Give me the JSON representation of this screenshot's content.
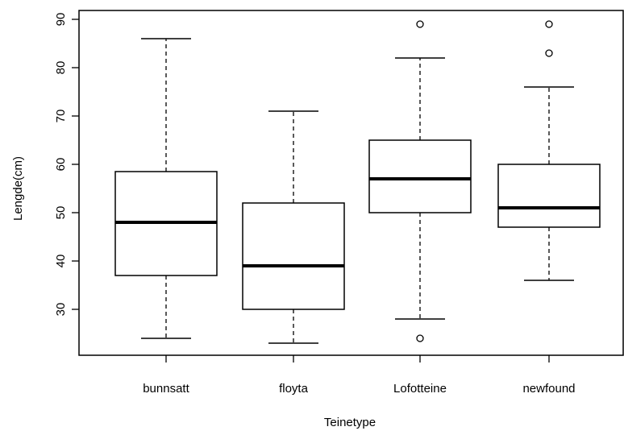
{
  "chart_data": {
    "type": "boxplot",
    "xlabel": "Teinetype",
    "ylabel": "Lengde(cm)",
    "ylim": [
      20,
      90
    ],
    "yticks": [
      30,
      40,
      50,
      60,
      70,
      80,
      90
    ],
    "categories": [
      "bunnsatt",
      "floyta",
      "Lofotteine",
      "newfound"
    ],
    "boxes": [
      {
        "name": "bunnsatt",
        "whisker_low": 24,
        "q1": 37,
        "median": 48,
        "q3": 58.5,
        "whisker_high": 86,
        "outliers": []
      },
      {
        "name": "floyta",
        "whisker_low": 23,
        "q1": 30,
        "median": 39,
        "q3": 52,
        "whisker_high": 71,
        "outliers": []
      },
      {
        "name": "Lofotteine",
        "whisker_low": 28,
        "q1": 50,
        "median": 57,
        "q3": 65,
        "whisker_high": 82,
        "outliers": [
          24,
          89
        ]
      },
      {
        "name": "newfound",
        "whisker_low": 36,
        "q1": 47,
        "median": 51,
        "q3": 60,
        "whisker_high": 76,
        "outliers": [
          83,
          89
        ]
      }
    ]
  }
}
